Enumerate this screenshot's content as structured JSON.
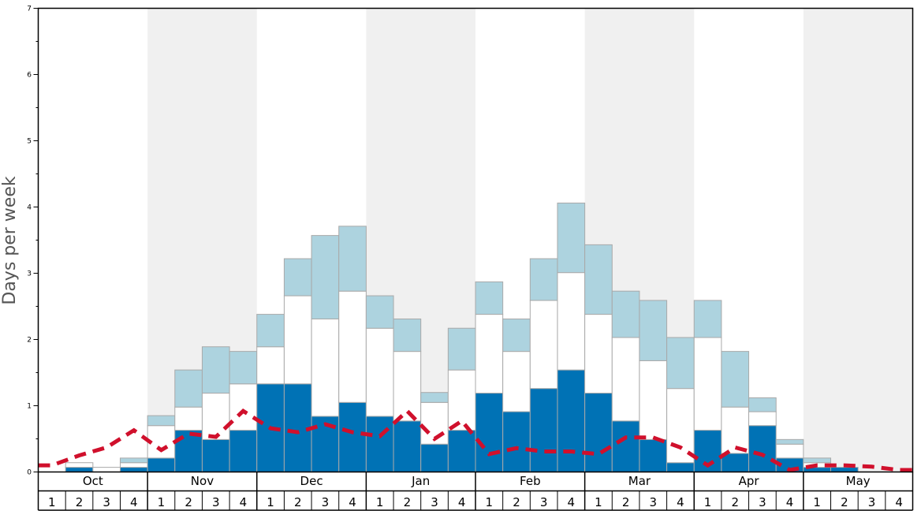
{
  "chart_data": {
    "type": "bar",
    "ylabel": "Days per week",
    "ylim": [
      0,
      7
    ],
    "yticks": [
      0,
      1,
      2,
      3,
      4,
      5,
      6,
      7
    ],
    "months": [
      "Oct",
      "Nov",
      "Dec",
      "Jan",
      "Feb",
      "Mar",
      "Apr",
      "May"
    ],
    "weeks": [
      "1",
      "2",
      "3",
      "4"
    ],
    "shaded_months": [
      "Nov",
      "Jan",
      "Mar",
      "May"
    ],
    "stacked": true,
    "series": [
      {
        "color": "#0072b5",
        "values": [
          0,
          0.07,
          0,
          0.07,
          0.21,
          0.63,
          0.49,
          0.63,
          1.33,
          1.33,
          0.84,
          1.05,
          0.84,
          0.77,
          0.42,
          0.63,
          1.19,
          0.91,
          1.26,
          1.54,
          1.19,
          0.77,
          0.49,
          0.14,
          0.63,
          0.28,
          0.7,
          0.21,
          0.07,
          0.07,
          0,
          0
        ]
      },
      {
        "color": "#ffffff",
        "values": [
          0,
          0.07,
          0.07,
          0.07,
          0.49,
          0.35,
          0.7,
          0.7,
          0.56,
          1.33,
          1.47,
          1.68,
          1.33,
          1.05,
          0.63,
          0.91,
          1.19,
          0.91,
          1.33,
          1.47,
          1.19,
          1.26,
          1.19,
          1.12,
          1.4,
          0.7,
          0.21,
          0.21,
          0.07,
          0,
          0,
          0
        ]
      },
      {
        "color": "#add3df",
        "values": [
          0,
          0,
          0,
          0.07,
          0.15,
          0.56,
          0.7,
          0.49,
          0.49,
          0.56,
          1.26,
          0.98,
          0.49,
          0.49,
          0.15,
          0.63,
          0.49,
          0.49,
          0.63,
          1.05,
          1.05,
          0.7,
          0.91,
          0.77,
          0.56,
          0.84,
          0.21,
          0.07,
          0.07,
          0,
          0,
          0
        ]
      }
    ],
    "line": {
      "color": "#d0102c",
      "style": "dashed",
      "values": [
        0.1,
        0.25,
        0.37,
        0.63,
        0.33,
        0.58,
        0.53,
        0.92,
        0.66,
        0.6,
        0.72,
        0.6,
        0.54,
        0.92,
        0.5,
        0.77,
        0.27,
        0.36,
        0.31,
        0.31,
        0.27,
        0.52,
        0.52,
        0.37,
        0.1,
        0.37,
        0.26,
        0.03,
        0.1,
        0.1,
        0.08,
        0.03
      ]
    }
  }
}
